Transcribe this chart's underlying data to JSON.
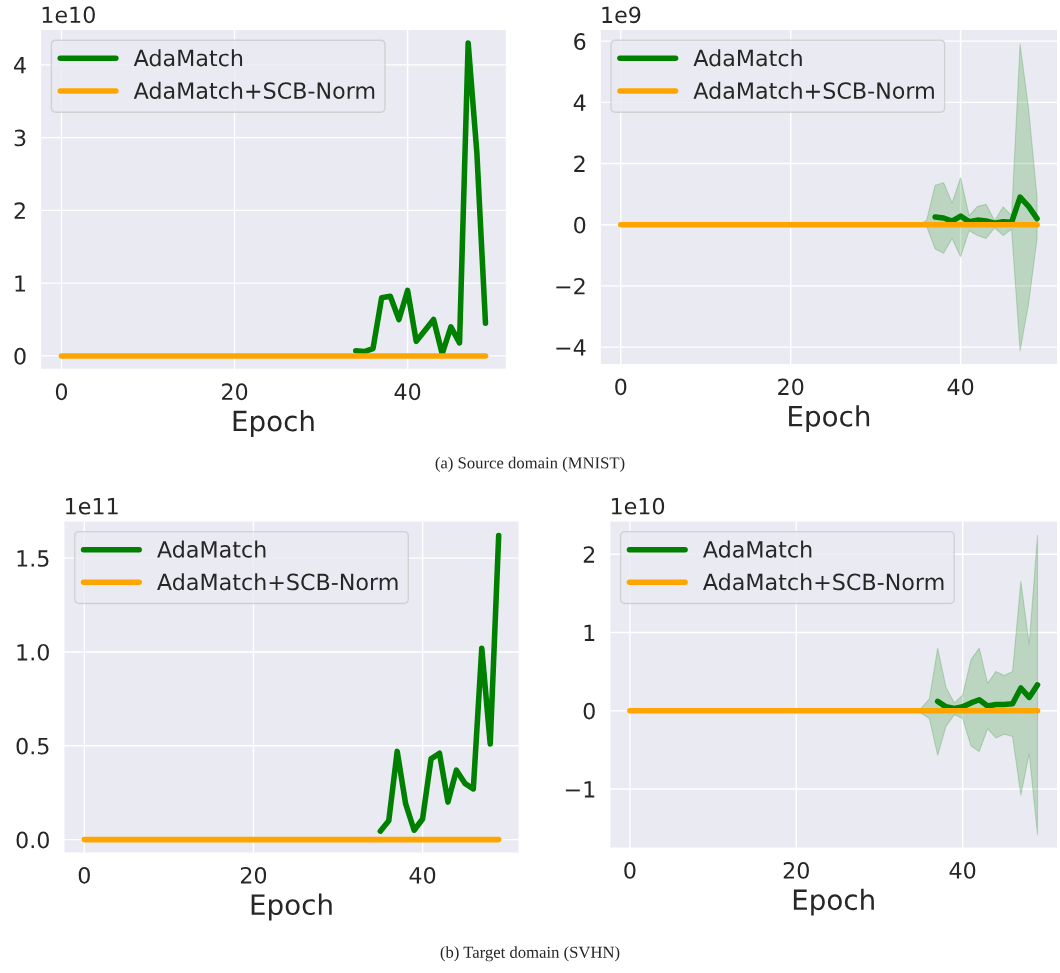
{
  "chart_data": [
    {
      "type": "line",
      "xlabel": "Epoch",
      "annotations": [
        "1e10",
        "(a) Source domain (MNIST)"
      ],
      "xlim": [
        -2.45,
        51.45
      ],
      "xticks": [
        0,
        20,
        40
      ],
      "ylim": [
        -0.19,
        4.49
      ],
      "yticks": [
        0,
        1,
        2,
        3,
        4
      ],
      "grid": true,
      "legend": "upper left",
      "line_style": "solid",
      "x": [
        0,
        1,
        2,
        3,
        4,
        5,
        6,
        7,
        8,
        9,
        10,
        11,
        12,
        13,
        14,
        15,
        16,
        17,
        18,
        19,
        20,
        21,
        22,
        23,
        24,
        25,
        26,
        27,
        28,
        29,
        30,
        31,
        32,
        33,
        34,
        35,
        36,
        37,
        38,
        39,
        40,
        41,
        42,
        43,
        44,
        45,
        46,
        47,
        48,
        49
      ],
      "series": [
        {
          "name": "AdaMatch",
          "color": "#008000",
          "values": [
            null,
            null,
            null,
            null,
            null,
            null,
            null,
            null,
            null,
            null,
            null,
            null,
            null,
            null,
            null,
            null,
            null,
            null,
            null,
            null,
            null,
            null,
            null,
            null,
            null,
            null,
            null,
            null,
            null,
            null,
            null,
            null,
            null,
            null,
            0.07,
            0.06,
            0.1,
            0.8,
            0.82,
            0.5,
            0.9,
            0.2,
            0.35,
            0.5,
            0.03,
            0.4,
            0.18,
            4.3,
            2.8,
            0.45
          ]
        },
        {
          "name": "AdaMatch+SCB-Norm",
          "color": "#ffa500",
          "values": [
            0,
            0,
            0,
            0,
            0,
            0,
            0,
            0,
            0,
            0,
            0,
            0,
            0,
            0,
            0,
            0,
            0,
            0,
            0,
            0,
            0,
            0,
            0,
            0,
            0,
            0,
            0,
            0,
            0,
            0,
            0,
            0,
            0,
            0,
            0,
            0,
            0,
            0,
            0,
            0,
            0,
            0,
            0,
            0,
            0,
            0,
            0,
            0,
            0,
            0
          ]
        }
      ]
    },
    {
      "type": "line",
      "xlabel": "Epoch",
      "annotations": [
        "1e9"
      ],
      "xlim": [
        -2.45,
        51.45
      ],
      "xticks": [
        0,
        20,
        40
      ],
      "ylim": [
        -4.58,
        6.39
      ],
      "yticks": [
        {
          "value": -4,
          "label": "−4"
        },
        {
          "value": -2,
          "label": "−2"
        },
        0,
        2,
        4,
        6
      ],
      "grid": true,
      "legend": "upper left",
      "line_style": "solid",
      "x": [
        0,
        1,
        2,
        3,
        4,
        5,
        6,
        7,
        8,
        9,
        10,
        11,
        12,
        13,
        14,
        15,
        16,
        17,
        18,
        19,
        20,
        21,
        22,
        23,
        24,
        25,
        26,
        27,
        28,
        29,
        30,
        31,
        32,
        33,
        34,
        35,
        36,
        37,
        38,
        39,
        40,
        41,
        42,
        43,
        44,
        45,
        46,
        47,
        48,
        49
      ],
      "series": [
        {
          "name": "AdaMatch",
          "color": "#008000",
          "values": [
            null,
            null,
            null,
            null,
            null,
            null,
            null,
            null,
            null,
            null,
            null,
            null,
            null,
            null,
            null,
            null,
            null,
            null,
            null,
            null,
            null,
            null,
            null,
            null,
            null,
            null,
            null,
            null,
            null,
            null,
            null,
            null,
            null,
            null,
            null,
            null,
            null,
            0.25,
            0.22,
            0.12,
            0.28,
            0.1,
            0.15,
            0.12,
            0.05,
            0.1,
            0.08,
            0.9,
            0.6,
            0.2
          ],
          "upper": [
            0,
            0,
            0,
            0,
            0,
            0,
            0,
            0,
            0,
            0,
            0,
            0,
            0,
            0,
            0,
            0,
            0,
            0,
            0,
            0,
            0,
            0,
            0,
            0,
            0,
            0,
            0,
            0,
            0,
            0,
            0,
            0,
            0,
            0,
            0,
            0,
            0.14,
            1.29,
            1.37,
            0.71,
            1.54,
            0.3,
            0.6,
            0.67,
            0.14,
            0.58,
            0.3,
            5.9,
            3.8,
            0.9
          ],
          "lower": [
            0,
            0,
            0,
            0,
            0,
            0,
            0,
            0,
            0,
            0,
            0,
            0,
            0,
            0,
            0,
            0,
            0,
            0,
            0,
            0,
            0,
            0,
            0,
            0,
            0,
            0,
            0,
            0,
            0,
            0,
            0,
            0,
            0,
            0,
            0,
            0,
            -0.05,
            -0.79,
            -0.93,
            -0.45,
            -1.05,
            -0.2,
            -0.35,
            -0.45,
            -0.1,
            -0.35,
            -0.15,
            -4.12,
            -2.59,
            -0.45
          ]
        },
        {
          "name": "AdaMatch+SCB-Norm",
          "color": "#ffa500",
          "values": [
            0,
            0,
            0,
            0,
            0,
            0,
            0,
            0,
            0,
            0,
            0,
            0,
            0,
            0,
            0,
            0,
            0,
            0,
            0,
            0,
            0,
            0,
            0,
            0,
            0,
            0,
            0,
            0,
            0,
            0,
            0,
            0,
            0,
            0,
            0,
            0,
            0,
            0,
            0,
            0,
            0,
            0,
            0,
            0,
            0,
            0,
            0,
            0,
            0,
            0
          ]
        }
      ]
    },
    {
      "type": "line",
      "xlabel": "Epoch",
      "annotations": [
        "1e11",
        "(b) Target domain (SVHN)"
      ],
      "xlim": [
        -2.45,
        51.45
      ],
      "xticks": [
        0,
        20,
        40
      ],
      "ylim": [
        -0.073,
        1.7
      ],
      "yticks": [
        {
          "value": 0,
          "label": "0.0"
        },
        0.5,
        {
          "value": 1,
          "label": "1.0"
        },
        1.5
      ],
      "grid": true,
      "legend": "upper left",
      "line_style": "solid",
      "x": [
        0,
        1,
        2,
        3,
        4,
        5,
        6,
        7,
        8,
        9,
        10,
        11,
        12,
        13,
        14,
        15,
        16,
        17,
        18,
        19,
        20,
        21,
        22,
        23,
        24,
        25,
        26,
        27,
        28,
        29,
        30,
        31,
        32,
        33,
        34,
        35,
        36,
        37,
        38,
        39,
        40,
        41,
        42,
        43,
        44,
        45,
        46,
        47,
        48,
        49
      ],
      "series": [
        {
          "name": "AdaMatch",
          "color": "#008000",
          "values": [
            null,
            null,
            null,
            null,
            null,
            null,
            null,
            null,
            null,
            null,
            null,
            null,
            null,
            null,
            null,
            null,
            null,
            null,
            null,
            null,
            null,
            null,
            null,
            null,
            null,
            null,
            null,
            null,
            null,
            null,
            null,
            null,
            null,
            null,
            null,
            0.045,
            0.1,
            0.47,
            0.19,
            0.05,
            0.11,
            0.43,
            0.46,
            0.2,
            0.37,
            0.3,
            0.27,
            1.02,
            0.51,
            1.62
          ]
        },
        {
          "name": "AdaMatch+SCB-Norm",
          "color": "#ffa500",
          "values": [
            0,
            0,
            0,
            0,
            0,
            0,
            0,
            0,
            0,
            0,
            0,
            0,
            0,
            0,
            0,
            0,
            0,
            0,
            0,
            0,
            0,
            0,
            0,
            0,
            0,
            0,
            0,
            0,
            0,
            0,
            0,
            0,
            0,
            0,
            0,
            0,
            0,
            0,
            0,
            0,
            0,
            0,
            0,
            0,
            0,
            0,
            0,
            0,
            0,
            0
          ]
        }
      ]
    },
    {
      "type": "line",
      "xlabel": "Epoch",
      "annotations": [
        "1e10"
      ],
      "xlim": [
        -2.45,
        51.45
      ],
      "xticks": [
        0,
        20,
        40
      ],
      "ylim": [
        -1.76,
        2.43
      ],
      "yticks": [
        {
          "value": -1,
          "label": "−1"
        },
        0,
        1,
        2
      ],
      "grid": true,
      "legend": "upper left",
      "line_style": "solid",
      "x": [
        0,
        1,
        2,
        3,
        4,
        5,
        6,
        7,
        8,
        9,
        10,
        11,
        12,
        13,
        14,
        15,
        16,
        17,
        18,
        19,
        20,
        21,
        22,
        23,
        24,
        25,
        26,
        27,
        28,
        29,
        30,
        31,
        32,
        33,
        34,
        35,
        36,
        37,
        38,
        39,
        40,
        41,
        42,
        43,
        44,
        45,
        46,
        47,
        48,
        49
      ],
      "series": [
        {
          "name": "AdaMatch",
          "color": "#008000",
          "values": [
            null,
            null,
            null,
            null,
            null,
            null,
            null,
            null,
            null,
            null,
            null,
            null,
            null,
            null,
            null,
            null,
            null,
            null,
            null,
            null,
            null,
            null,
            null,
            null,
            null,
            null,
            null,
            null,
            null,
            null,
            null,
            null,
            null,
            null,
            null,
            null,
            null,
            0.12,
            0.05,
            0.03,
            0.05,
            0.1,
            0.14,
            0.06,
            0.08,
            0.08,
            0.09,
            0.29,
            0.17,
            0.33
          ],
          "upper": [
            0,
            0,
            0,
            0,
            0,
            0,
            0,
            0,
            0,
            0,
            0,
            0,
            0,
            0,
            0,
            0,
            0,
            0,
            0,
            0,
            0,
            0,
            0,
            0,
            0,
            0,
            0,
            0,
            0,
            0,
            0,
            0,
            0,
            0,
            0,
            0.03,
            0.15,
            0.8,
            0.3,
            0.1,
            0.2,
            0.65,
            0.8,
            0.35,
            0.5,
            0.45,
            0.5,
            1.65,
            0.85,
            2.24
          ],
          "lower": [
            0,
            0,
            0,
            0,
            0,
            0,
            0,
            0,
            0,
            0,
            0,
            0,
            0,
            0,
            0,
            0,
            0,
            0,
            0,
            0,
            0,
            0,
            0,
            0,
            0,
            0,
            0,
            0,
            0,
            0,
            0,
            0,
            0,
            0,
            0,
            -0.03,
            -0.1,
            -0.57,
            -0.2,
            -0.05,
            -0.1,
            -0.45,
            -0.52,
            -0.23,
            -0.35,
            -0.3,
            -0.33,
            -1.08,
            -0.55,
            -1.58
          ]
        },
        {
          "name": "AdaMatch+SCB-Norm",
          "color": "#ffa500",
          "values": [
            0,
            0,
            0,
            0,
            0,
            0,
            0,
            0,
            0,
            0,
            0,
            0,
            0,
            0,
            0,
            0,
            0,
            0,
            0,
            0,
            0,
            0,
            0,
            0,
            0,
            0,
            0,
            0,
            0,
            0,
            0,
            0,
            0,
            0,
            0,
            0,
            0,
            0,
            0,
            0,
            0,
            0,
            0,
            0,
            0,
            0,
            0,
            0,
            0,
            0
          ]
        }
      ]
    }
  ]
}
